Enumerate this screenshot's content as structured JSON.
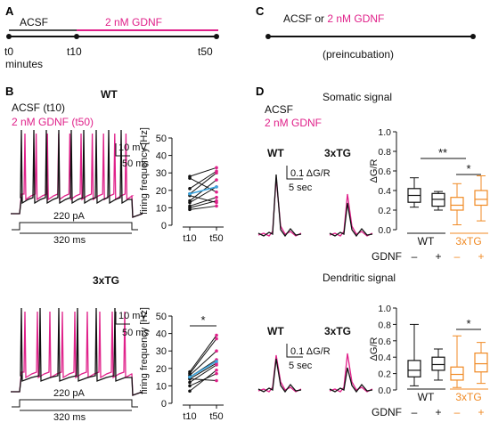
{
  "colors": {
    "black": "#111111",
    "magenta": "#e0218a",
    "blue": "#3ba6e0",
    "orange": "#f08a24"
  },
  "panelA": {
    "letter": "A",
    "acsf": "ACSF",
    "gdnf": "2 nM GDNF",
    "t0": "t0",
    "t10": "t10",
    "t50": "t50",
    "minutes": "minutes"
  },
  "panelB": {
    "letter": "B",
    "wt": "WT",
    "acsf_t10": "ACSF (t10)",
    "gdnf_t50": "2 nM GDNF (t50)",
    "tg": "3xTG",
    "scale_mv": "10 mV",
    "scale_ms": "50 ms",
    "current": "220 pA",
    "duration": "320 ms",
    "ylabel": "firing frequency [Hz]",
    "x_t10": "t10",
    "x_t50": "t50",
    "sig": "*"
  },
  "panelC": {
    "letter": "C",
    "title_a": "ACSF or ",
    "title_b": "2 nM GDNF",
    "sub": "(preincubation)"
  },
  "panelD": {
    "letter": "D",
    "somatic": "Somatic signal",
    "dendritic": "Dendritic signal",
    "acsf": "ACSF",
    "gdnf": "2 nM GDNF",
    "wt": "WT",
    "tg": "3xTG",
    "scale_dg": "0.1 ΔG/R",
    "scale_t": "5 sec",
    "ylabel": "ΔG/R",
    "gdnf_row": "GDNF",
    "minus": "–",
    "plus": "+",
    "sig2": "**",
    "sig1": "*"
  },
  "chart_data": [
    {
      "type": "line",
      "title": "WT",
      "ylabel": "firing frequency [Hz]",
      "categories": [
        "t10",
        "t50"
      ],
      "ylim": [
        0,
        50
      ],
      "yticks": [
        0,
        10,
        20,
        30,
        40,
        50
      ],
      "series": [
        {
          "values": [
            28,
            33
          ]
        },
        {
          "values": [
            27,
            19
          ]
        },
        {
          "values": [
            21,
            31
          ]
        },
        {
          "values": [
            18,
            30
          ]
        },
        {
          "values": [
            17,
            13
          ]
        },
        {
          "values": [
            14,
            26
          ]
        },
        {
          "values": [
            13,
            22
          ]
        },
        {
          "values": [
            11,
            16
          ]
        },
        {
          "values": [
            10,
            14
          ]
        },
        {
          "values": [
            9,
            11
          ]
        },
        {
          "values": [
            18,
            22
          ],
          "mean": true
        }
      ]
    },
    {
      "type": "line",
      "title": "3xTG",
      "ylabel": "firing frequency [Hz]",
      "categories": [
        "t10",
        "t50"
      ],
      "ylim": [
        0,
        50
      ],
      "yticks": [
        0,
        10,
        20,
        30,
        40,
        50
      ],
      "series": [
        {
          "values": [
            18,
            39
          ]
        },
        {
          "values": [
            17,
            37
          ]
        },
        {
          "values": [
            16,
            30
          ]
        },
        {
          "values": [
            15,
            25
          ]
        },
        {
          "values": [
            14,
            23
          ]
        },
        {
          "values": [
            14,
            13
          ]
        },
        {
          "values": [
            12,
            22
          ]
        },
        {
          "values": [
            10,
            17
          ]
        },
        {
          "values": [
            7,
            19
          ]
        },
        {
          "values": [
            15,
            24
          ],
          "mean": true
        }
      ]
    },
    {
      "type": "box",
      "title": "Somatic signal",
      "ylabel": "ΔG/R",
      "ylim": [
        0,
        1.0
      ],
      "yticks": [
        0.0,
        0.2,
        0.4,
        0.6,
        0.8,
        1.0
      ],
      "boxes": [
        {
          "group": "WT",
          "gdnf": "–",
          "min": 0.23,
          "q1": 0.28,
          "median": 0.35,
          "q3": 0.42,
          "max": 0.53
        },
        {
          "group": "WT",
          "gdnf": "+",
          "min": 0.2,
          "q1": 0.24,
          "median": 0.31,
          "q3": 0.37,
          "max": 0.39
        },
        {
          "group": "3xTG",
          "gdnf": "–",
          "min": 0.05,
          "q1": 0.2,
          "median": 0.25,
          "q3": 0.33,
          "max": 0.47
        },
        {
          "group": "3xTG",
          "gdnf": "+",
          "min": 0.09,
          "q1": 0.25,
          "median": 0.31,
          "q3": 0.4,
          "max": 0.55
        }
      ]
    },
    {
      "type": "box",
      "title": "Dendritic signal",
      "ylabel": "ΔG/R",
      "ylim": [
        0,
        1.0
      ],
      "yticks": [
        0.0,
        0.2,
        0.4,
        0.6,
        0.8,
        1.0
      ],
      "boxes": [
        {
          "group": "WT",
          "gdnf": "–",
          "min": 0.05,
          "q1": 0.16,
          "median": 0.24,
          "q3": 0.36,
          "max": 0.8
        },
        {
          "group": "WT",
          "gdnf": "+",
          "min": 0.12,
          "q1": 0.24,
          "median": 0.31,
          "q3": 0.4,
          "max": 0.5
        },
        {
          "group": "3xTG",
          "gdnf": "–",
          "min": 0.03,
          "q1": 0.12,
          "median": 0.19,
          "q3": 0.28,
          "max": 0.66
        },
        {
          "group": "3xTG",
          "gdnf": "+",
          "min": 0.08,
          "q1": 0.22,
          "median": 0.32,
          "q3": 0.45,
          "max": 0.58
        }
      ]
    }
  ]
}
